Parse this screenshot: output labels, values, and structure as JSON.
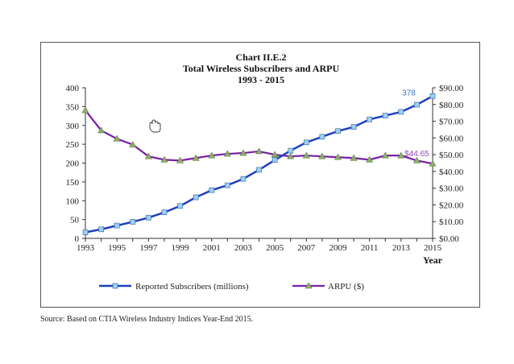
{
  "colors": {
    "subscribers": "#1f3fbf",
    "subscriber_marker": "#9fd0ef",
    "arpu": "#7a1fa8",
    "arpu_marker": "#8fae6a"
  },
  "chart_data": {
    "type": "line",
    "title_lines": [
      "Chart II.E.2",
      "Total Wireless Subscribers and ARPU",
      "1993 - 2015"
    ],
    "xlabel": "Year",
    "x": [
      1993,
      1994,
      1995,
      1996,
      1997,
      1998,
      1999,
      2000,
      2001,
      2002,
      2003,
      2004,
      2005,
      2006,
      2007,
      2008,
      2009,
      2010,
      2011,
      2012,
      2013,
      2014,
      2015
    ],
    "x_tick_labels": [
      "1993",
      "1995",
      "1997",
      "1999",
      "2001",
      "2003",
      "2005",
      "2007",
      "2009",
      "2011",
      "2013",
      "2015"
    ],
    "y_left": {
      "lim": [
        0,
        400
      ],
      "ticks": [
        "0",
        "50",
        "100",
        "150",
        "200",
        "250",
        "300",
        "350",
        "400"
      ]
    },
    "y_right": {
      "lim": [
        0,
        90
      ],
      "ticks": [
        "$0.00",
        "$10.00",
        "$20.00",
        "$30.00",
        "$40.00",
        "$50.00",
        "$60.00",
        "$70.00",
        "$80.00",
        "$90.00"
      ]
    },
    "series": [
      {
        "name": "Reported Subscribers (millions)",
        "axis": "left",
        "values": [
          16,
          24,
          34,
          44,
          55,
          69,
          86,
          109,
          128,
          141,
          158,
          182,
          208,
          233,
          255,
          270,
          285,
          296,
          316,
          326,
          336,
          355,
          378
        ]
      },
      {
        "name": "ARPU ($)",
        "axis": "right",
        "values": [
          76.5,
          64.5,
          59.5,
          56,
          49,
          47,
          46.5,
          48,
          49.5,
          50.5,
          51,
          52,
          50,
          49,
          49.5,
          49,
          48.5,
          48,
          47,
          49.5,
          49.5,
          46.5,
          44.65
        ]
      }
    ],
    "annotations": [
      {
        "text": "378",
        "series": "Reported Subscribers (millions)"
      },
      {
        "text": "$44.65",
        "series": "ARPU ($)"
      }
    ],
    "legend": "bottom"
  },
  "source": "Source:  Based on CTIA Wireless Industry Indices Year-End 2015."
}
